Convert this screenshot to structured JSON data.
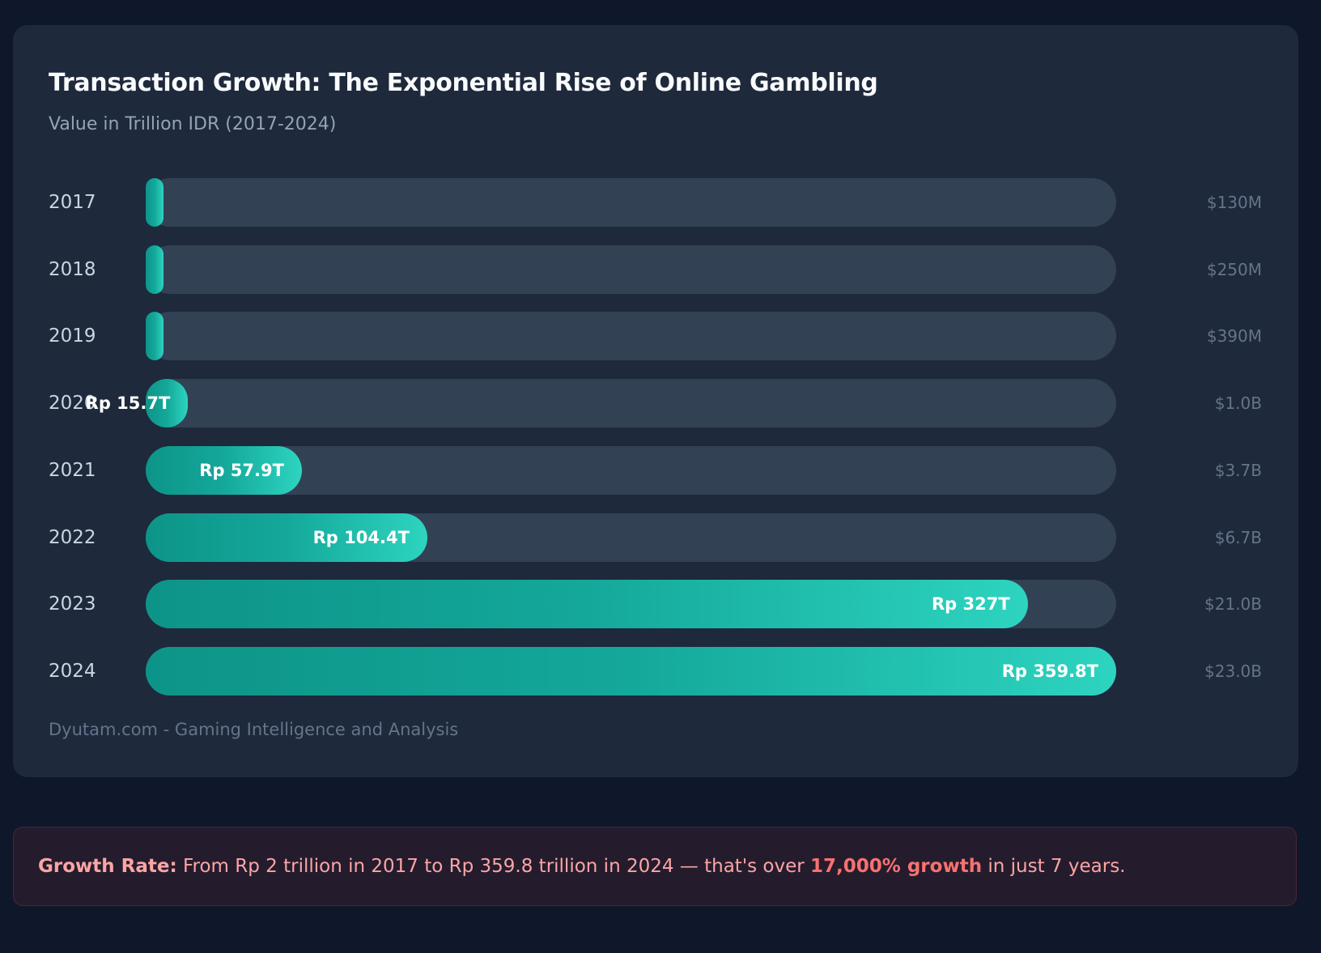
{
  "colors": {
    "background": "#0f172a",
    "card": "#1e293b",
    "track": "#334155",
    "fill_start": "#0d9488",
    "fill_end": "#2dd4bf",
    "callout_text": "#fca5a5",
    "callout_highlight": "#f87171"
  },
  "chart_data": {
    "type": "bar",
    "orientation": "horizontal",
    "title": "Transaction Growth: The Exponential Rise of Online Gambling",
    "subtitle": "Value in Trillion IDR (2017-2024)",
    "categories": [
      "2017",
      "2018",
      "2019",
      "2020",
      "2021",
      "2022",
      "2023",
      "2024"
    ],
    "values": [
      2,
      null,
      null,
      15.7,
      57.9,
      104.4,
      327,
      359.8
    ],
    "bar_labels": [
      "",
      "",
      "",
      "Rp 15.7T",
      "Rp 57.9T",
      "Rp 104.4T",
      "Rp 327T",
      "Rp 359.8T"
    ],
    "usd_labels": [
      "$130M",
      "$250M",
      "$390M",
      "$1.0B",
      "$3.7B",
      "$6.7B",
      "$21.0B",
      "$23.0B"
    ],
    "xlim": [
      0,
      359.8
    ],
    "grid": false,
    "source": "Dyutam.com - Gaming Intelligence and Analysis"
  },
  "callout": {
    "lead": "Growth Rate:",
    "text1": " From Rp 2 trillion in 2017 to Rp 359.8 trillion in 2024 — that's over ",
    "highlight": "17,000% growth",
    "text2": " in just 7 years."
  }
}
